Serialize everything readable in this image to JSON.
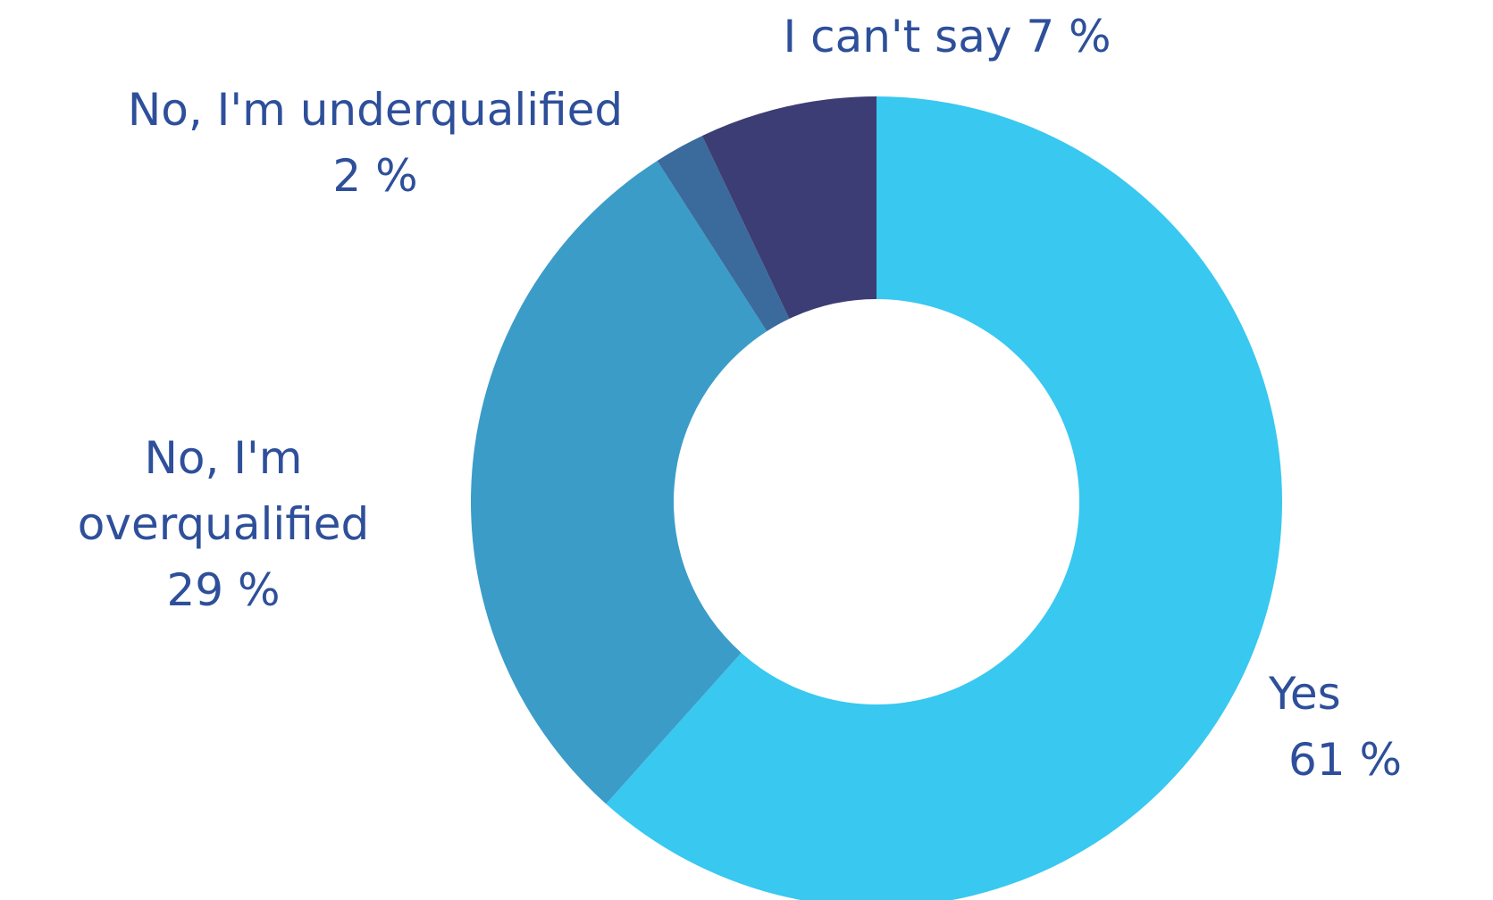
{
  "chart_data": {
    "type": "donut",
    "categories": [
      "Yes",
      "No, I'm overqualified",
      "No, I'm underqualified",
      "I can't say"
    ],
    "values": [
      61,
      29,
      2,
      7
    ],
    "value_labels": [
      "61 %",
      "29 %",
      "2 %",
      "7 %"
    ],
    "colors": [
      "#38c8f0",
      "#3b9cc8",
      "#3a6b9c",
      "#3c3d74"
    ]
  }
}
